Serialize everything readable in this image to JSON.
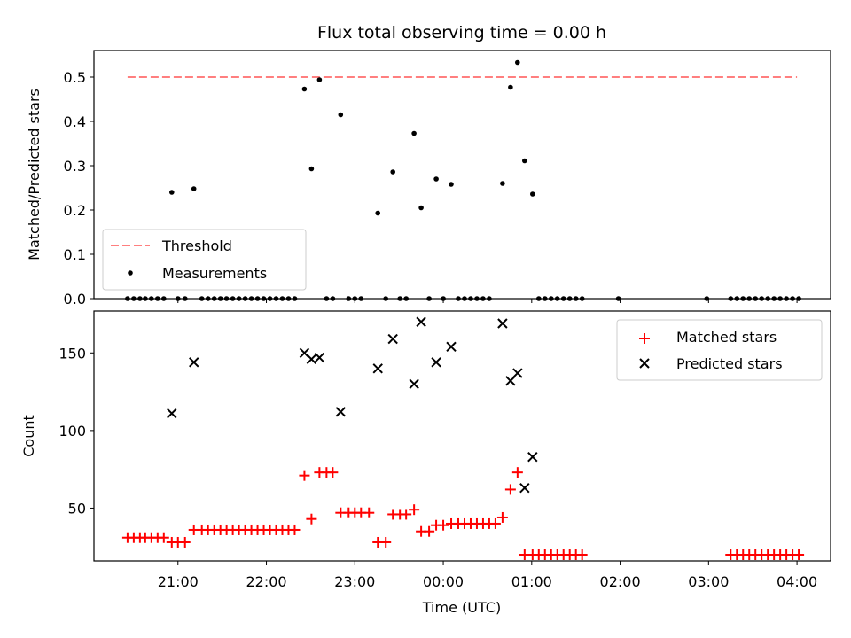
{
  "title": "Flux total observing time = 0.00 h",
  "colors": {
    "threshold": "#ff7f7f",
    "measurement": "#000000",
    "matched": "#ff0000",
    "predicted": "#000000"
  },
  "chart_data": [
    {
      "type": "scatter",
      "ylabel": "Matched/Predicted stars",
      "xlabel": "",
      "xaxis": "time (hours since midnight UTC, negative = previous day)",
      "xlim": [
        -3.95,
        4.38
      ],
      "ylim": [
        0,
        0.56
      ],
      "yticks": [
        0.0,
        0.1,
        0.2,
        0.3,
        0.4,
        0.5
      ],
      "ytick_labels": [
        "0.0",
        "0.1",
        "0.2",
        "0.3",
        "0.4",
        "0.5"
      ],
      "grid": false,
      "legend": {
        "position": "lower-left",
        "entries": [
          "Threshold",
          "Measurements"
        ]
      },
      "threshold": {
        "name": "Threshold",
        "value": 0.5,
        "x_range": [
          -3.57,
          4.0
        ],
        "style": "dashed"
      },
      "series": [
        {
          "name": "Measurements",
          "points": [
            [
              -3.57,
              0
            ],
            [
              -3.5,
              0
            ],
            [
              -3.43,
              0
            ],
            [
              -3.37,
              0
            ],
            [
              -3.3,
              0
            ],
            [
              -3.23,
              0
            ],
            [
              -3.16,
              0
            ],
            [
              -3.07,
              0.24
            ],
            [
              -3.0,
              0
            ],
            [
              -2.92,
              0
            ],
            [
              -2.82,
              0.248
            ],
            [
              -2.73,
              0
            ],
            [
              -2.66,
              0
            ],
            [
              -2.59,
              0
            ],
            [
              -2.52,
              0
            ],
            [
              -2.45,
              0
            ],
            [
              -2.38,
              0
            ],
            [
              -2.31,
              0
            ],
            [
              -2.24,
              0
            ],
            [
              -2.17,
              0
            ],
            [
              -2.1,
              0
            ],
            [
              -2.03,
              0
            ],
            [
              -1.96,
              0
            ],
            [
              -1.89,
              0
            ],
            [
              -1.82,
              0
            ],
            [
              -1.75,
              0
            ],
            [
              -1.68,
              0
            ],
            [
              -1.57,
              0.473
            ],
            [
              -1.49,
              0.293
            ],
            [
              -1.4,
              0.494
            ],
            [
              -1.32,
              0
            ],
            [
              -1.25,
              0
            ],
            [
              -1.16,
              0.415
            ],
            [
              -1.07,
              0
            ],
            [
              -1.0,
              0
            ],
            [
              -0.93,
              0
            ],
            [
              -0.74,
              0.193
            ],
            [
              -0.65,
              0
            ],
            [
              -0.57,
              0.286
            ],
            [
              -0.49,
              0
            ],
            [
              -0.42,
              0
            ],
            [
              -0.33,
              0.373
            ],
            [
              -0.25,
              0.205
            ],
            [
              -0.16,
              0
            ],
            [
              -0.08,
              0.27
            ],
            [
              0.0,
              0
            ],
            [
              0.09,
              0.258
            ],
            [
              0.17,
              0
            ],
            [
              0.24,
              0
            ],
            [
              0.31,
              0
            ],
            [
              0.38,
              0
            ],
            [
              0.45,
              0
            ],
            [
              0.52,
              0
            ],
            [
              0.67,
              0.26
            ],
            [
              0.76,
              0.477
            ],
            [
              0.84,
              0.533
            ],
            [
              0.92,
              0.311
            ],
            [
              1.01,
              0.236
            ],
            [
              1.08,
              0
            ],
            [
              1.15,
              0
            ],
            [
              1.22,
              0
            ],
            [
              1.29,
              0
            ],
            [
              1.36,
              0
            ],
            [
              1.43,
              0
            ],
            [
              1.5,
              0
            ],
            [
              1.57,
              0
            ],
            [
              1.98,
              0
            ],
            [
              2.98,
              0
            ],
            [
              3.25,
              0
            ],
            [
              3.32,
              0
            ],
            [
              3.39,
              0
            ],
            [
              3.46,
              0
            ],
            [
              3.53,
              0
            ],
            [
              3.6,
              0
            ],
            [
              3.67,
              0
            ],
            [
              3.74,
              0
            ],
            [
              3.81,
              0
            ],
            [
              3.88,
              0
            ],
            [
              3.95,
              0
            ],
            [
              4.02,
              0
            ]
          ]
        }
      ]
    },
    {
      "type": "scatter",
      "ylabel": "Count",
      "xlabel": "Time (UTC)",
      "xaxis": "time (hours since midnight UTC, negative = previous day)",
      "xlim": [
        -3.95,
        4.38
      ],
      "ylim": [
        16,
        177
      ],
      "yticks": [
        50,
        100,
        150
      ],
      "ytick_labels": [
        "50",
        "100",
        "150"
      ],
      "xticks": [
        -3,
        -2,
        -1,
        0,
        1,
        2,
        3,
        4
      ],
      "xtick_labels": [
        "21:00",
        "22:00",
        "23:00",
        "00:00",
        "01:00",
        "02:00",
        "03:00",
        "04:00"
      ],
      "grid": false,
      "legend": {
        "position": "top-right",
        "entries": [
          "Matched stars",
          "Predicted stars"
        ]
      },
      "series": [
        {
          "name": "Matched stars",
          "marker": "plus",
          "points": [
            [
              -3.57,
              31
            ],
            [
              -3.5,
              31
            ],
            [
              -3.43,
              31
            ],
            [
              -3.37,
              31
            ],
            [
              -3.3,
              31
            ],
            [
              -3.23,
              31
            ],
            [
              -3.16,
              31
            ],
            [
              -3.07,
              28
            ],
            [
              -3.0,
              28
            ],
            [
              -2.92,
              28
            ],
            [
              -2.82,
              36
            ],
            [
              -2.73,
              36
            ],
            [
              -2.66,
              36
            ],
            [
              -2.59,
              36
            ],
            [
              -2.52,
              36
            ],
            [
              -2.45,
              36
            ],
            [
              -2.38,
              36
            ],
            [
              -2.31,
              36
            ],
            [
              -2.24,
              36
            ],
            [
              -2.17,
              36
            ],
            [
              -2.1,
              36
            ],
            [
              -2.03,
              36
            ],
            [
              -1.96,
              36
            ],
            [
              -1.89,
              36
            ],
            [
              -1.82,
              36
            ],
            [
              -1.75,
              36
            ],
            [
              -1.68,
              36
            ],
            [
              -1.57,
              71
            ],
            [
              -1.49,
              43
            ],
            [
              -1.4,
              73
            ],
            [
              -1.32,
              73
            ],
            [
              -1.25,
              73
            ],
            [
              -1.16,
              47
            ],
            [
              -1.07,
              47
            ],
            [
              -1.0,
              47
            ],
            [
              -0.93,
              47
            ],
            [
              -0.84,
              47
            ],
            [
              -0.74,
              28
            ],
            [
              -0.65,
              28
            ],
            [
              -0.57,
              46
            ],
            [
              -0.49,
              46
            ],
            [
              -0.42,
              46
            ],
            [
              -0.33,
              49
            ],
            [
              -0.25,
              35
            ],
            [
              -0.16,
              35
            ],
            [
              -0.08,
              39
            ],
            [
              0.0,
              39
            ],
            [
              0.09,
              40
            ],
            [
              0.17,
              40
            ],
            [
              0.24,
              40
            ],
            [
              0.31,
              40
            ],
            [
              0.38,
              40
            ],
            [
              0.45,
              40
            ],
            [
              0.52,
              40
            ],
            [
              0.59,
              40
            ],
            [
              0.67,
              44
            ],
            [
              0.76,
              62
            ],
            [
              0.84,
              73
            ],
            [
              0.92,
              20
            ],
            [
              1.01,
              20
            ],
            [
              1.08,
              20
            ],
            [
              1.15,
              20
            ],
            [
              1.22,
              20
            ],
            [
              1.29,
              20
            ],
            [
              1.36,
              20
            ],
            [
              1.43,
              20
            ],
            [
              1.5,
              20
            ],
            [
              1.57,
              20
            ],
            [
              3.25,
              20
            ],
            [
              3.32,
              20
            ],
            [
              3.39,
              20
            ],
            [
              3.46,
              20
            ],
            [
              3.53,
              20
            ],
            [
              3.6,
              20
            ],
            [
              3.67,
              20
            ],
            [
              3.74,
              20
            ],
            [
              3.81,
              20
            ],
            [
              3.88,
              20
            ],
            [
              3.95,
              20
            ],
            [
              4.02,
              20
            ]
          ]
        },
        {
          "name": "Predicted stars",
          "marker": "x",
          "points": [
            [
              -3.07,
              111
            ],
            [
              -2.82,
              144
            ],
            [
              -1.57,
              150
            ],
            [
              -1.49,
              146
            ],
            [
              -1.4,
              147
            ],
            [
              -1.16,
              112
            ],
            [
              -0.74,
              140
            ],
            [
              -0.57,
              159
            ],
            [
              -0.33,
              130
            ],
            [
              -0.25,
              170
            ],
            [
              -0.08,
              144
            ],
            [
              0.09,
              154
            ],
            [
              0.67,
              169
            ],
            [
              0.76,
              132
            ],
            [
              0.84,
              137
            ],
            [
              0.92,
              63
            ],
            [
              1.01,
              83
            ]
          ]
        }
      ]
    }
  ]
}
